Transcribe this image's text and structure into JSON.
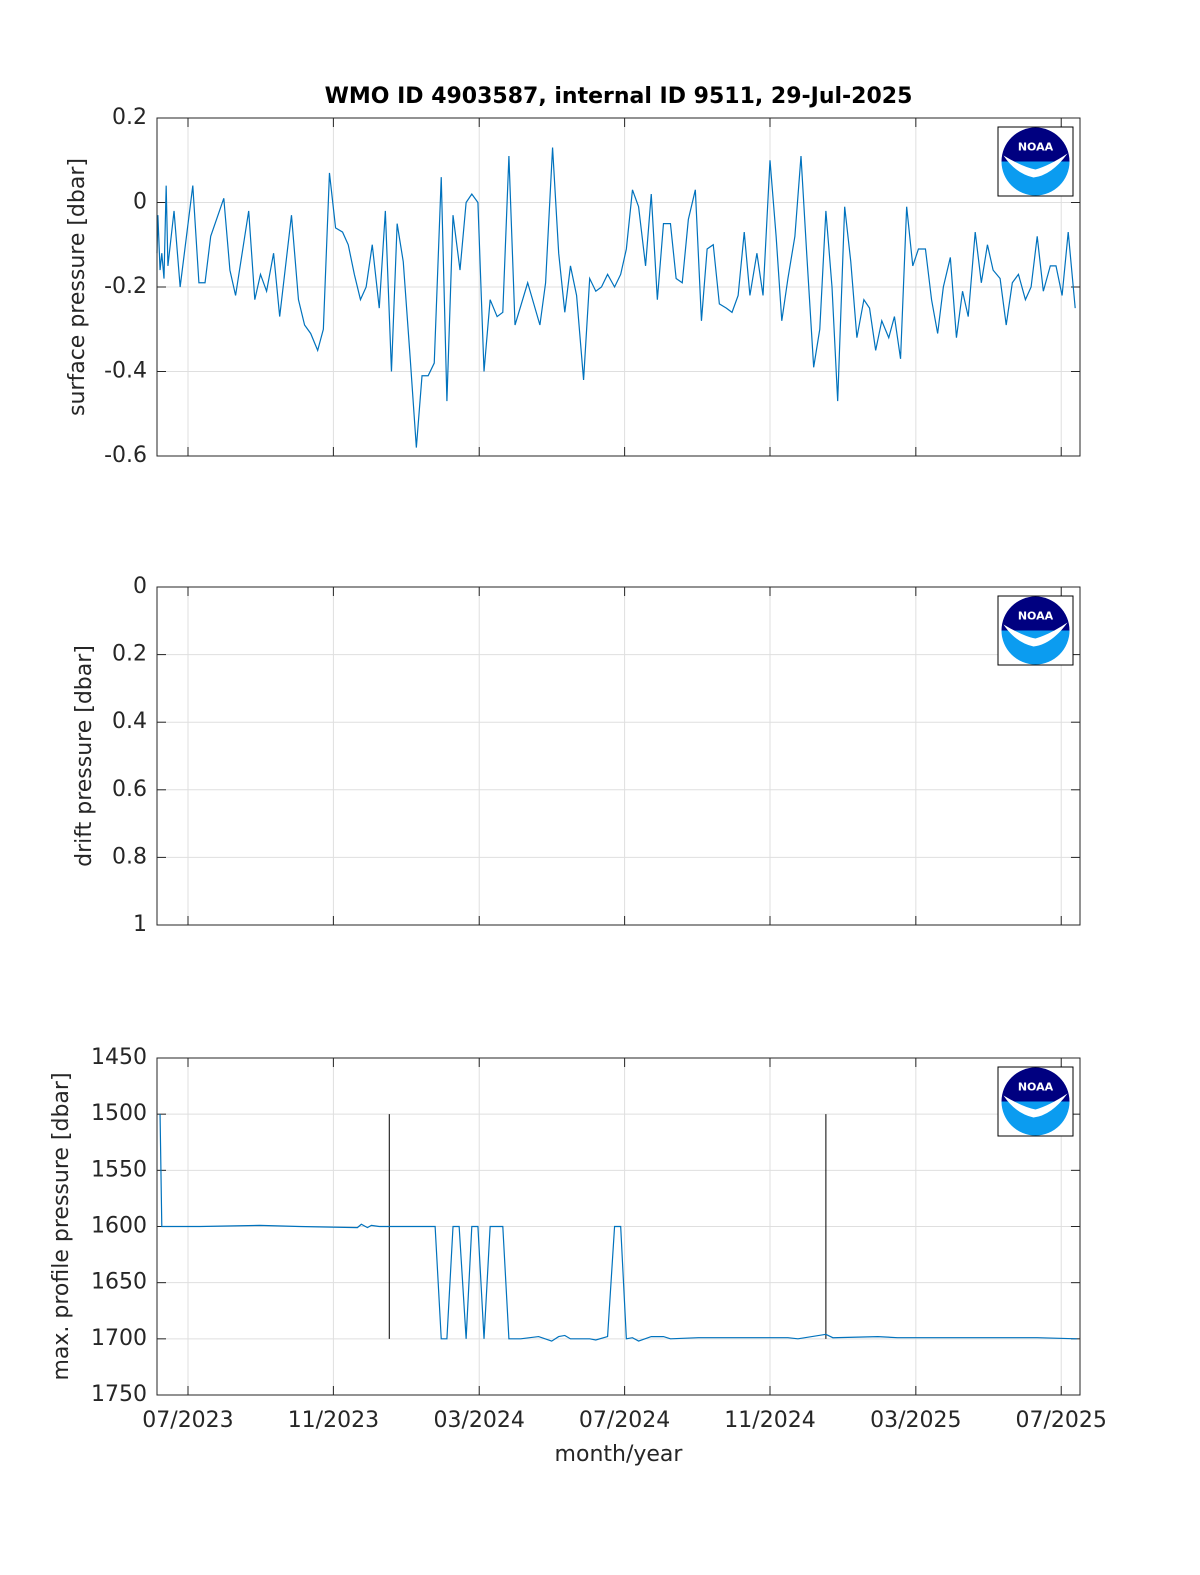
{
  "logo": "NOAA",
  "chart_data": [
    {
      "type": "line",
      "title": "WMO ID 4903587, internal ID 9511, 29-Jul-2025",
      "ylabel": "surface pressure [dbar]",
      "xlim": [
        2023.429,
        2025.543
      ],
      "xticks": [
        2023.5,
        2023.833,
        2024.167,
        2024.5,
        2024.833,
        2025.167,
        2025.5
      ],
      "ylim": [
        -0.6,
        0.2
      ],
      "yticks": [
        0.2,
        0,
        -0.2,
        -0.4,
        -0.6
      ],
      "reversed": false,
      "grid": true,
      "series": [
        {
          "color": "#0072bd",
          "x": [
            2023.429,
            2023.431,
            2023.436,
            2023.44,
            2023.445,
            2023.45,
            2023.454,
            2023.468,
            2023.482,
            2023.511,
            2023.525,
            2023.539,
            2023.552,
            2023.582,
            2023.596,
            2023.609,
            2023.639,
            2023.653,
            2023.666,
            2023.68,
            2023.696,
            2023.71,
            2023.737,
            2023.753,
            2023.767,
            2023.781,
            2023.797,
            2023.81,
            2023.824,
            2023.838,
            2023.854,
            2023.867,
            2023.881,
            2023.895,
            2023.908,
            2023.922,
            2023.938,
            2023.952,
            2023.966,
            2023.979,
            2023.993,
            2024.009,
            2024.023,
            2024.036,
            2024.05,
            2024.064,
            2024.08,
            2024.093,
            2024.107,
            2024.123,
            2024.137,
            2024.15,
            2024.164,
            2024.178,
            2024.192,
            2024.208,
            2024.221,
            2024.235,
            2024.249,
            2024.278,
            2024.306,
            2024.319,
            2024.335,
            2024.349,
            2024.363,
            2024.376,
            2024.39,
            2024.406,
            2024.42,
            2024.434,
            2024.447,
            2024.461,
            2024.477,
            2024.491,
            2024.504,
            2024.518,
            2024.532,
            2024.548,
            2024.561,
            2024.575,
            2024.589,
            2024.605,
            2024.618,
            2024.632,
            2024.646,
            2024.662,
            2024.676,
            2024.689,
            2024.703,
            2024.717,
            2024.733,
            2024.746,
            2024.76,
            2024.774,
            2024.787,
            2024.803,
            2024.817,
            2024.833,
            2024.847,
            2024.86,
            2024.874,
            2024.89,
            2024.904,
            2024.917,
            2024.933,
            2024.947,
            2024.961,
            2024.975,
            2024.988,
            2025.004,
            2025.018,
            2025.032,
            2025.048,
            2025.061,
            2025.075,
            2025.089,
            2025.105,
            2025.118,
            2025.132,
            2025.146,
            2025.16,
            2025.173,
            2025.189,
            2025.203,
            2025.217,
            2025.23,
            2025.246,
            2025.26,
            2025.274,
            2025.287,
            2025.303,
            2025.317,
            2025.331,
            2025.344,
            2025.36,
            2025.374,
            2025.388,
            2025.402,
            2025.418,
            2025.431,
            2025.445,
            2025.459,
            2025.475,
            2025.488,
            2025.502,
            2025.516,
            2025.532
          ],
          "values": [
            -0.12,
            -0.03,
            -0.16,
            -0.12,
            -0.18,
            0.04,
            -0.15,
            -0.02,
            -0.2,
            0.04,
            -0.19,
            -0.19,
            -0.08,
            0.01,
            -0.16,
            -0.22,
            -0.02,
            -0.23,
            -0.17,
            -0.21,
            -0.12,
            -0.27,
            -0.03,
            -0.23,
            -0.29,
            -0.31,
            -0.35,
            -0.3,
            0.07,
            -0.06,
            -0.07,
            -0.1,
            -0.17,
            -0.23,
            -0.2,
            -0.1,
            -0.25,
            -0.02,
            -0.4,
            -0.05,
            -0.14,
            -0.37,
            -0.58,
            -0.41,
            -0.41,
            -0.38,
            0.06,
            -0.47,
            -0.03,
            -0.16,
            0.0,
            0.02,
            0.0,
            -0.4,
            -0.23,
            -0.27,
            -0.26,
            0.11,
            -0.29,
            -0.19,
            -0.29,
            -0.19,
            0.13,
            -0.12,
            -0.26,
            -0.15,
            -0.22,
            -0.42,
            -0.18,
            -0.21,
            -0.2,
            -0.17,
            -0.2,
            -0.17,
            -0.11,
            0.03,
            -0.01,
            -0.15,
            0.02,
            -0.23,
            -0.05,
            -0.05,
            -0.18,
            -0.19,
            -0.04,
            0.03,
            -0.28,
            -0.11,
            -0.1,
            -0.24,
            -0.25,
            -0.26,
            -0.22,
            -0.07,
            -0.22,
            -0.12,
            -0.22,
            0.1,
            -0.08,
            -0.28,
            -0.18,
            -0.08,
            0.11,
            -0.12,
            -0.39,
            -0.3,
            -0.02,
            -0.2,
            -0.47,
            -0.01,
            -0.14,
            -0.32,
            -0.23,
            -0.25,
            -0.35,
            -0.28,
            -0.32,
            -0.27,
            -0.37,
            -0.01,
            -0.15,
            -0.11,
            -0.11,
            -0.23,
            -0.31,
            -0.2,
            -0.13,
            -0.32,
            -0.21,
            -0.27,
            -0.07,
            -0.19,
            -0.1,
            -0.16,
            -0.18,
            -0.29,
            -0.19,
            -0.17,
            -0.23,
            -0.2,
            -0.08,
            -0.21,
            -0.15,
            -0.15,
            -0.22,
            -0.07,
            -0.25
          ]
        }
      ]
    },
    {
      "type": "line",
      "ylabel": "drift pressure [dbar]",
      "xlim": [
        2023.429,
        2025.543
      ],
      "xticks": [
        2023.5,
        2023.833,
        2024.167,
        2024.5,
        2024.833,
        2025.167,
        2025.5
      ],
      "ylim": [
        0,
        1
      ],
      "yticks": [
        0,
        0.2,
        0.4,
        0.6,
        0.8,
        1
      ],
      "reversed": true,
      "grid": true,
      "series": [
        {
          "color": "#0072bd",
          "x": [],
          "values": []
        }
      ]
    },
    {
      "type": "line",
      "ylabel": "max. profile pressure [dbar]",
      "xlabel": "month/year",
      "xlim": [
        2023.429,
        2025.543
      ],
      "xticks": [
        {
          "value": 2023.5,
          "label": "07/2023"
        },
        {
          "value": 2023.833,
          "label": "11/2023"
        },
        {
          "value": 2024.167,
          "label": "03/2024"
        },
        {
          "value": 2024.5,
          "label": "07/2024"
        },
        {
          "value": 2024.833,
          "label": "11/2024"
        },
        {
          "value": 2025.167,
          "label": "03/2025"
        },
        {
          "value": 2025.5,
          "label": "07/2025"
        }
      ],
      "ylim": [
        1450,
        1750
      ],
      "yticks": [
        1450,
        1500,
        1550,
        1600,
        1650,
        1700,
        1750
      ],
      "reversed": true,
      "grid": true,
      "series": [
        {
          "color": "#0072bd",
          "x": [
            2023.436,
            2023.44,
            2023.527,
            2023.664,
            2023.755,
            2023.888,
            2023.897,
            2023.911,
            2023.92,
            2023.938,
            2024.052,
            2024.066,
            2024.08,
            2024.093,
            2024.107,
            2024.121,
            2024.137,
            2024.15,
            2024.164,
            2024.178,
            2024.192,
            2024.221,
            2024.235,
            2024.262,
            2024.303,
            2024.333,
            2024.349,
            2024.363,
            2024.376,
            2024.42,
            2024.434,
            2024.461,
            2024.477,
            2024.491,
            2024.504,
            2024.518,
            2024.532,
            2024.561,
            2024.589,
            2024.605,
            2024.669,
            2024.806,
            2024.874,
            2024.897,
            2024.961,
            2024.977,
            2025.08,
            2025.125,
            2025.354,
            2025.445,
            2025.536
          ],
          "values": [
            1500,
            1600,
            1600,
            1599,
            1600,
            1601,
            1598,
            1601,
            1599,
            1600,
            1600,
            1600,
            1700,
            1700,
            1600,
            1600,
            1700,
            1600,
            1600,
            1700,
            1600,
            1600,
            1700,
            1700,
            1698,
            1702,
            1698,
            1697,
            1700,
            1700,
            1701,
            1698,
            1600,
            1600,
            1700,
            1699,
            1702,
            1698,
            1698,
            1700,
            1699,
            1699,
            1699,
            1700,
            1696,
            1699,
            1698,
            1699,
            1699,
            1699,
            1700
          ]
        }
      ],
      "vlines": {
        "color": "#000000",
        "x": [
          2023.961,
          2024.961
        ],
        "ymin": 1500,
        "ymax": 1700
      }
    }
  ]
}
